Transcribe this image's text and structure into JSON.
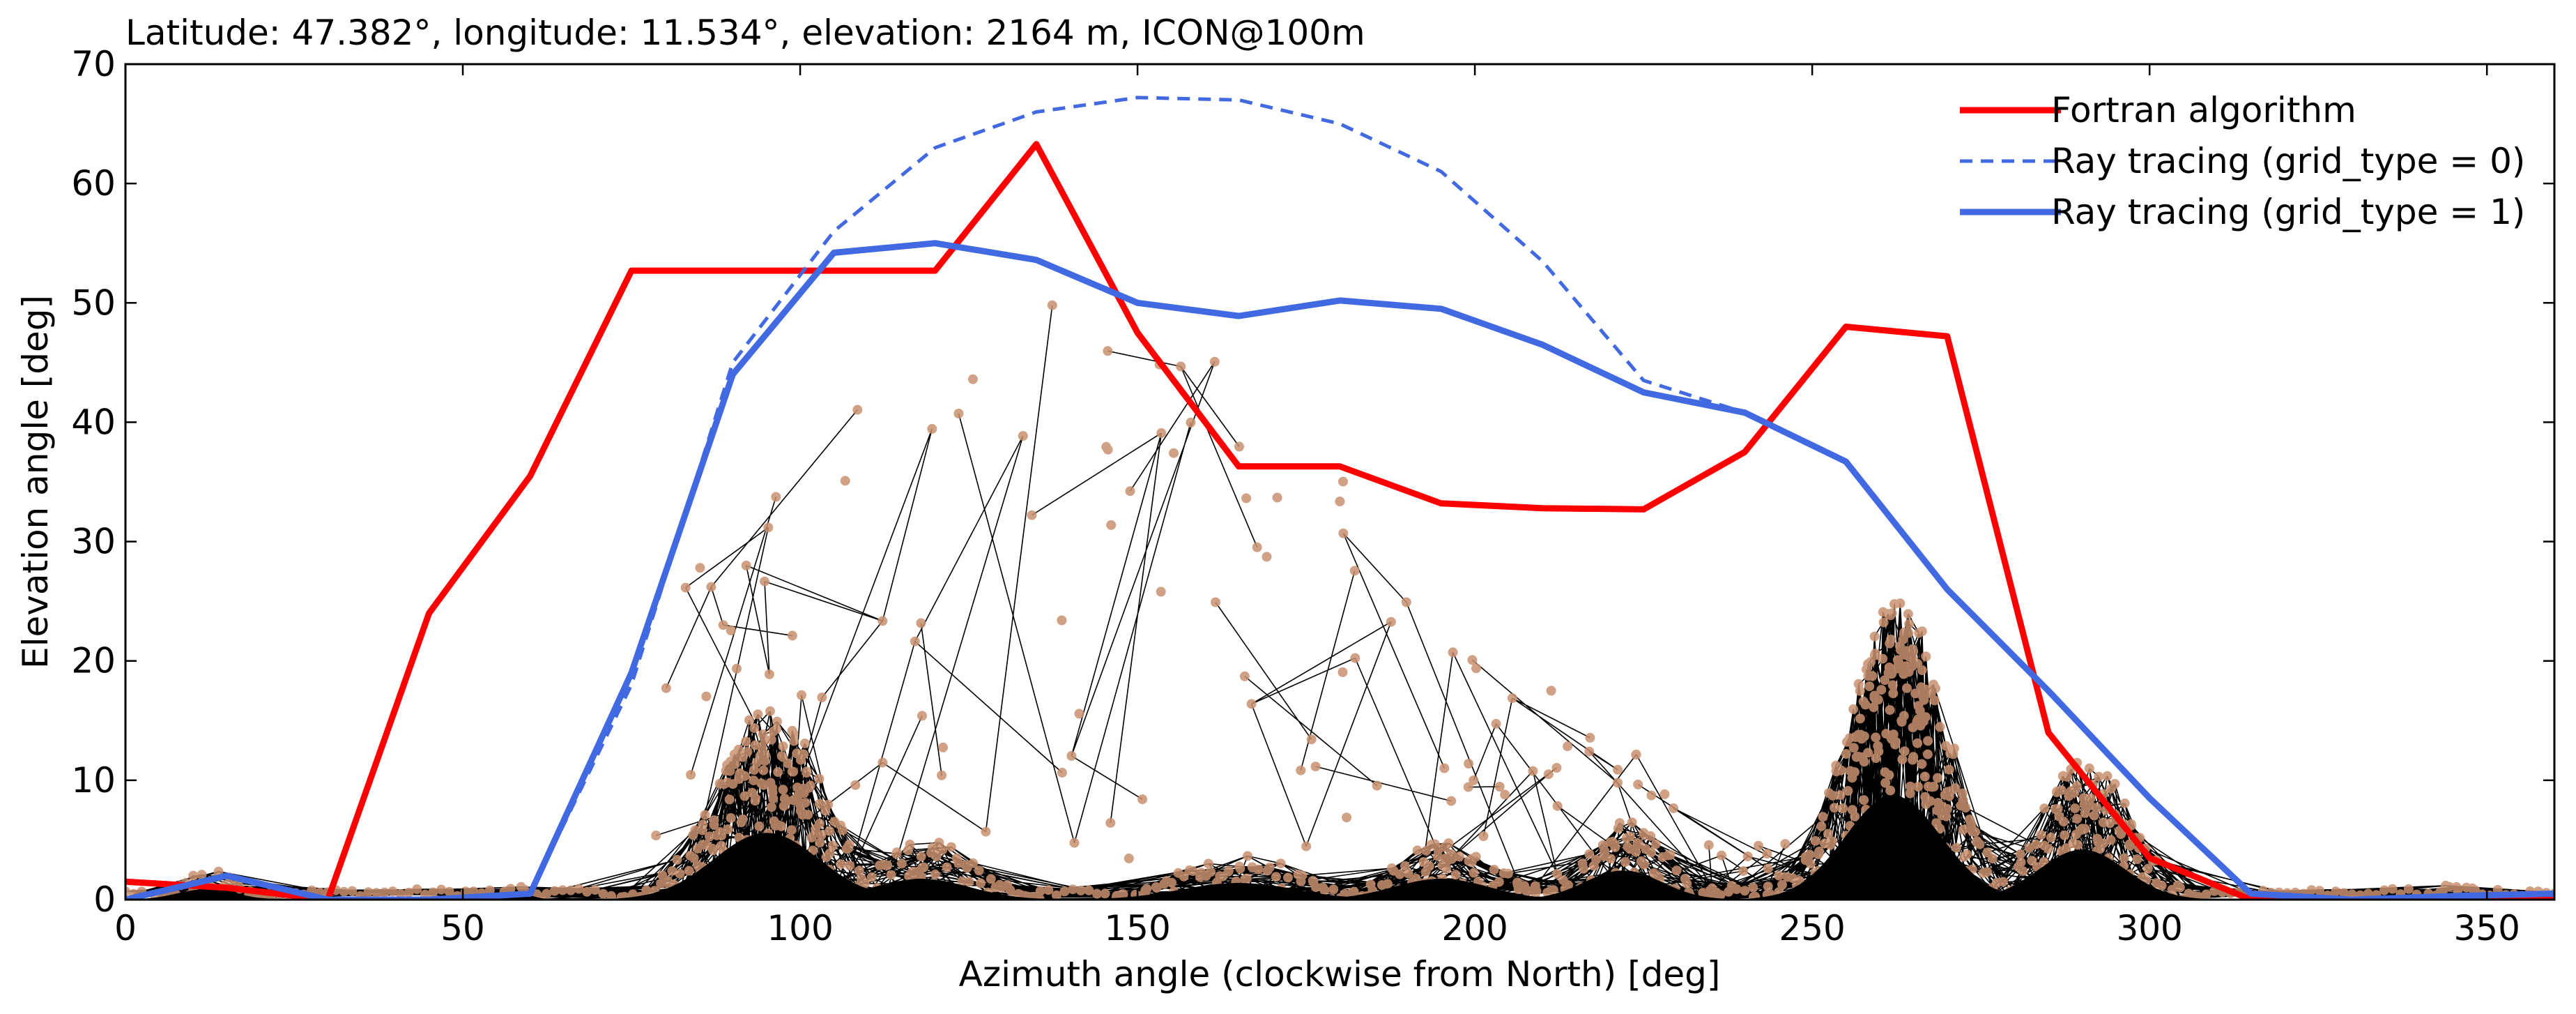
{
  "chart_data": {
    "type": "line",
    "title": "Latitude: 47.382°, longitude: 11.534°, elevation: 2164 m, ICON@100m",
    "xlabel": "Azimuth angle (clockwise from North) [deg]",
    "ylabel": "Elevation angle [deg]",
    "xlim": [
      0,
      360
    ],
    "ylim": [
      0,
      70
    ],
    "xticks": [
      0,
      50,
      100,
      150,
      200,
      250,
      300,
      350
    ],
    "yticks": [
      0,
      10,
      20,
      30,
      40,
      50,
      60,
      70
    ],
    "xtick_labels": [
      "0",
      "50",
      "100",
      "150",
      "200",
      "250",
      "300",
      "350"
    ],
    "ytick_labels": [
      "0",
      "10",
      "20",
      "30",
      "40",
      "50",
      "60",
      "70"
    ],
    "grid": false,
    "legend_position": "top-right",
    "series": [
      {
        "name": "Fortran algorithm",
        "color": "#ff0000",
        "dash": "solid",
        "x": [
          0,
          15,
          30,
          45,
          60,
          75,
          90,
          105,
          120,
          135,
          150,
          165,
          180,
          195,
          210,
          225,
          240,
          255,
          270,
          285,
          300,
          315,
          330,
          345,
          360
        ],
        "y": [
          1.5,
          1.0,
          0.0,
          24.0,
          35.5,
          52.7,
          52.7,
          52.7,
          52.7,
          63.3,
          47.5,
          36.3,
          36.3,
          33.2,
          32.8,
          32.7,
          37.5,
          48.0,
          47.2,
          14.0,
          3.5,
          0.0,
          0.0,
          0.0,
          0.0
        ]
      },
      {
        "name": "Ray tracing (grid_type = 0)",
        "color": "#4169e1",
        "dash": "dashed",
        "x": [
          0,
          15,
          30,
          45,
          60,
          75,
          90,
          105,
          120,
          135,
          150,
          165,
          180,
          195,
          210,
          225,
          240,
          255,
          270,
          285,
          300,
          315,
          330,
          345,
          360
        ],
        "y": [
          0.0,
          2.0,
          0.0,
          0.0,
          0.5,
          18.0,
          45.0,
          56.0,
          63.0,
          66.0,
          67.2,
          67.0,
          65.0,
          61.0,
          53.5,
          43.5,
          40.8,
          36.7,
          26.0,
          17.5,
          8.5,
          0.5,
          0.0,
          0.3,
          0.5
        ]
      },
      {
        "name": "Ray tracing (grid_type = 1)",
        "color": "#4169e1",
        "dash": "solid",
        "x": [
          0,
          15,
          30,
          45,
          60,
          75,
          90,
          105,
          120,
          135,
          150,
          165,
          180,
          195,
          210,
          225,
          240,
          255,
          270,
          285,
          300,
          315,
          330,
          345,
          360
        ],
        "y": [
          0.0,
          2.0,
          0.0,
          0.0,
          0.5,
          19.0,
          44.0,
          54.2,
          55.0,
          53.6,
          50.0,
          48.9,
          50.2,
          49.5,
          46.5,
          42.5,
          40.8,
          36.7,
          26.0,
          17.5,
          8.5,
          0.5,
          0.0,
          0.3,
          0.5
        ]
      }
    ]
  }
}
